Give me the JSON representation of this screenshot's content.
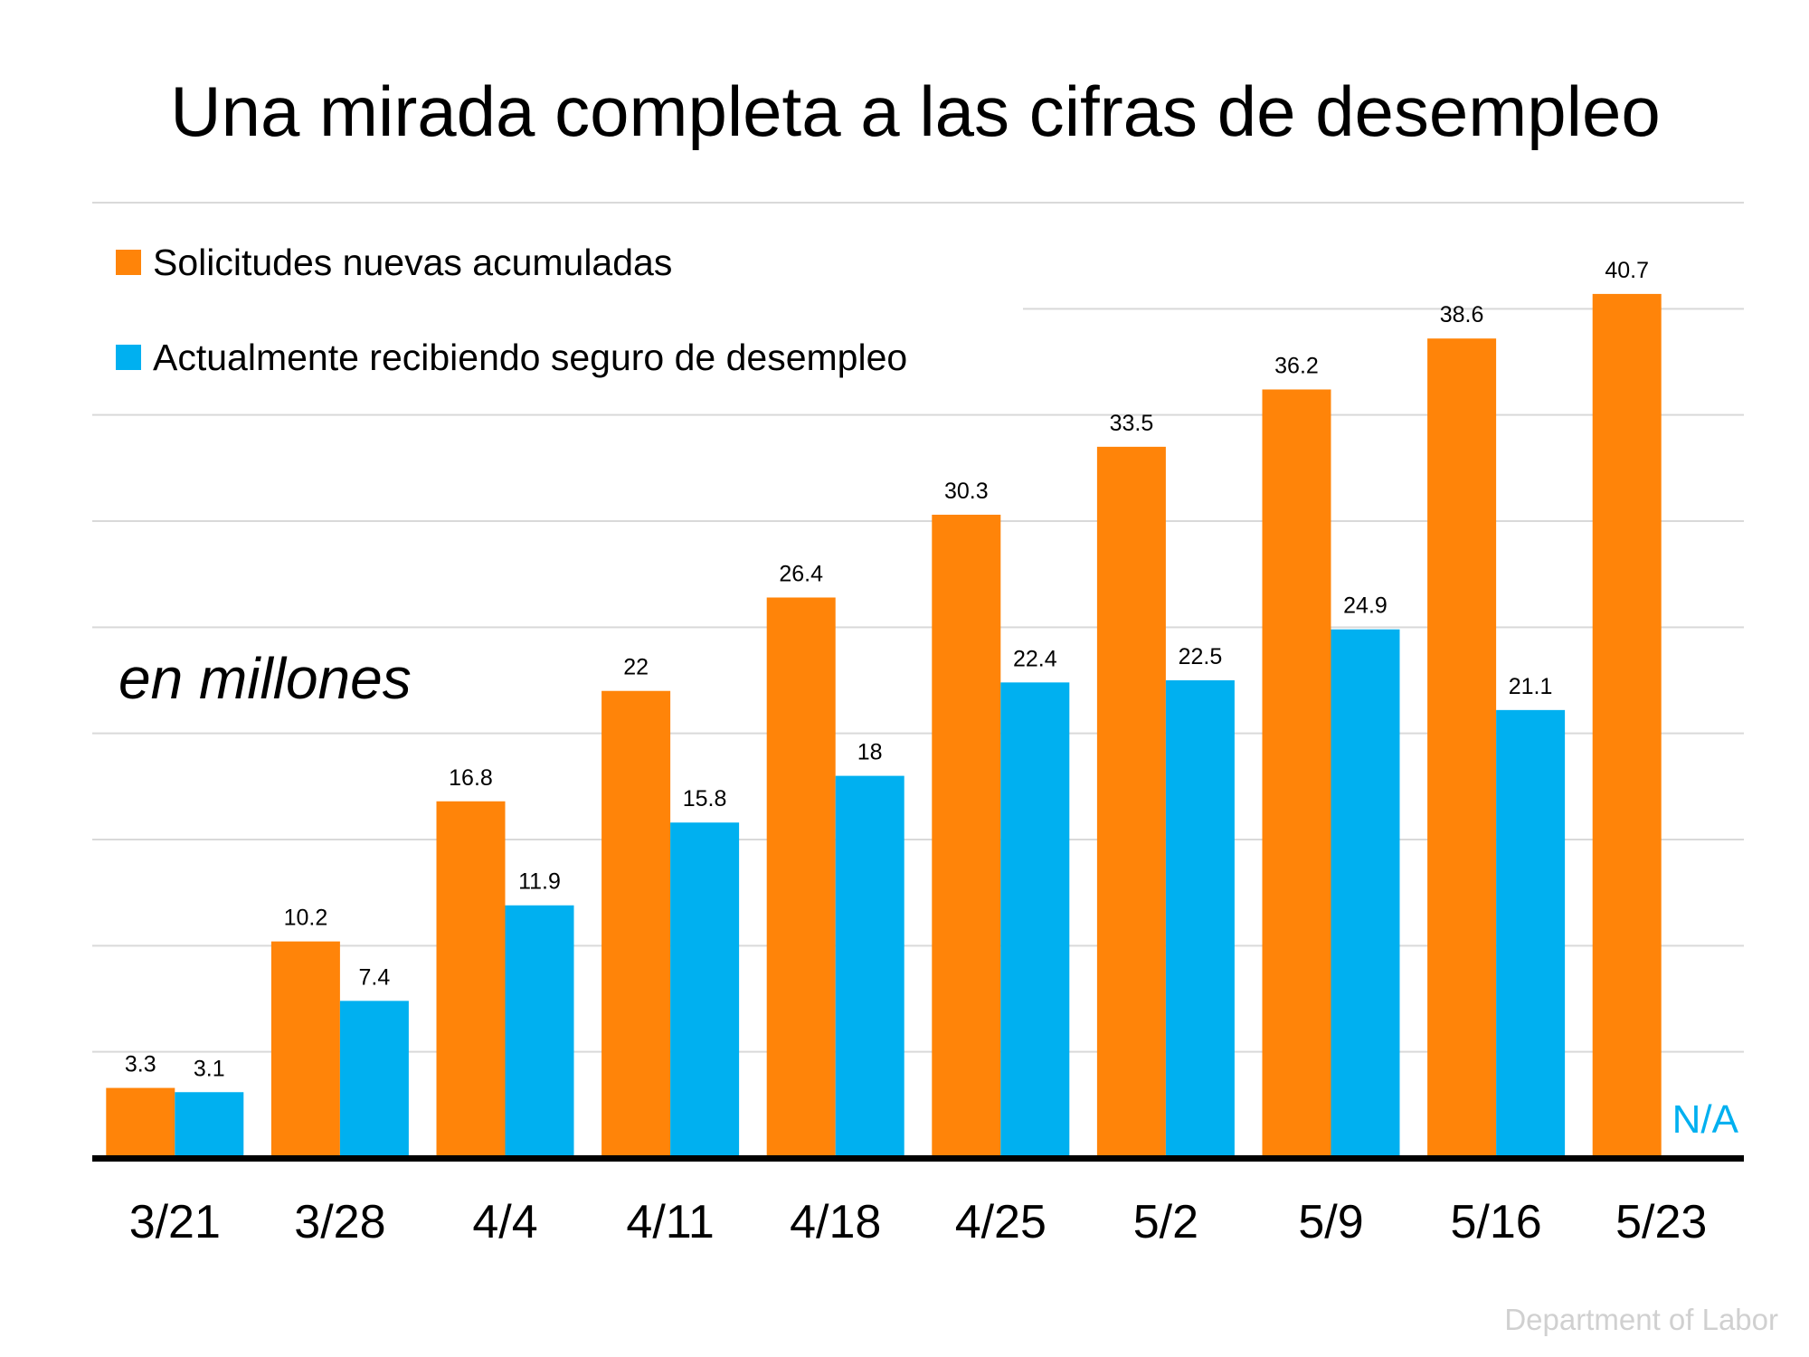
{
  "chart_data": {
    "type": "bar",
    "title": "Una mirada completa a las cifras de desempleo",
    "unit_note": "en millones",
    "categories": [
      "3/21",
      "3/28",
      "4/4",
      "4/11",
      "4/18",
      "4/25",
      "5/2",
      "5/9",
      "5/16",
      "5/23"
    ],
    "series": [
      {
        "name": "Solicitudes nuevas acumuladas",
        "color": "#FF8409",
        "values": [
          3.3,
          10.2,
          16.8,
          22,
          26.4,
          30.3,
          33.5,
          36.2,
          38.6,
          40.7
        ]
      },
      {
        "name": "Actualmente recibiendo seguro de desempleo",
        "color": "#00B0F0",
        "values": [
          3.1,
          7.4,
          11.9,
          15.8,
          18,
          22.4,
          22.5,
          24.9,
          21.1,
          null
        ]
      }
    ],
    "missing_label": "N/A",
    "ylim": [
      0,
      45
    ],
    "grid_step": 5,
    "grid": true,
    "y_tick_labels_shown": false,
    "legend_placement": "top-left",
    "source": "Department of Labor"
  }
}
